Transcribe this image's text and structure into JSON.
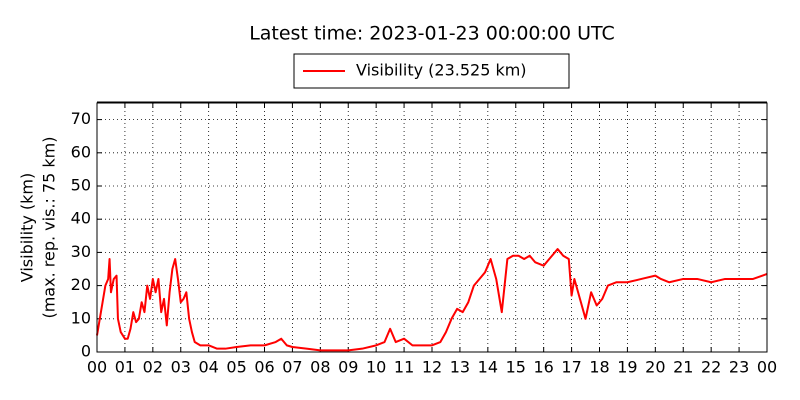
{
  "chart_data": {
    "type": "line",
    "title": "Latest time: 2023-01-23 00:00:00 UTC",
    "ylabel": [
      "Visibility (km)",
      "(max. rep. vis.: 75 km)"
    ],
    "x": [
      0,
      0.1,
      0.2,
      0.3,
      0.4,
      0.45,
      0.5,
      0.6,
      0.7,
      0.75,
      0.85,
      1.0,
      1.1,
      1.2,
      1.3,
      1.4,
      1.5,
      1.6,
      1.7,
      1.8,
      1.9,
      2.0,
      2.1,
      2.2,
      2.3,
      2.4,
      2.5,
      2.6,
      2.7,
      2.8,
      2.9,
      3.0,
      3.1,
      3.2,
      3.3,
      3.4,
      3.5,
      3.7,
      4.0,
      4.3,
      4.6,
      5.0,
      5.5,
      6.0,
      6.4,
      6.6,
      6.8,
      7.0,
      7.5,
      8.0,
      8.5,
      9.0,
      9.5,
      10.0,
      10.3,
      10.5,
      10.7,
      11.0,
      11.3,
      11.7,
      12.0,
      12.3,
      12.5,
      12.7,
      12.9,
      13.1,
      13.3,
      13.5,
      13.7,
      13.9,
      14.1,
      14.3,
      14.5,
      14.6,
      14.7,
      14.9,
      15.1,
      15.3,
      15.5,
      15.7,
      16.0,
      16.2,
      16.5,
      16.7,
      16.9,
      17.0,
      17.1,
      17.3,
      17.5,
      17.7,
      17.9,
      18.1,
      18.3,
      18.6,
      19.0,
      19.5,
      20.0,
      20.2,
      20.5,
      21.0,
      21.5,
      22.0,
      22.5,
      23.0,
      23.5,
      24.0
    ],
    "series": [
      {
        "name": "Visibility (23.525 km)",
        "color": "#ff0000",
        "values": [
          5,
          10,
          15,
          20,
          22,
          28,
          18,
          22,
          23,
          10,
          6,
          4,
          4,
          7,
          12,
          9,
          10,
          15,
          12,
          20,
          16,
          22,
          18,
          22,
          12,
          16,
          8,
          18,
          25,
          28,
          22,
          15,
          16,
          18,
          10,
          6,
          3,
          2,
          2,
          1,
          1,
          1.5,
          2,
          2,
          3,
          4,
          2,
          1.5,
          1,
          0.5,
          0.5,
          0.5,
          1,
          2,
          3,
          7,
          3,
          4,
          2,
          2,
          2,
          3,
          6,
          10,
          13,
          12,
          15,
          20,
          22,
          24,
          28,
          22,
          12,
          20,
          28,
          29,
          29,
          28,
          29,
          27,
          26,
          28,
          31,
          29,
          28,
          17,
          22,
          16,
          10,
          18,
          14,
          16,
          20,
          21,
          21,
          22,
          23,
          22,
          21,
          22,
          22,
          21,
          22,
          22,
          22,
          23.5
        ]
      }
    ],
    "xlim": [
      0,
      24
    ],
    "xticks": [
      {
        "value": 0,
        "label": "00"
      },
      {
        "value": 1,
        "label": "01"
      },
      {
        "value": 2,
        "label": "02"
      },
      {
        "value": 3,
        "label": "03"
      },
      {
        "value": 4,
        "label": "04"
      },
      {
        "value": 5,
        "label": "05"
      },
      {
        "value": 6,
        "label": "06"
      },
      {
        "value": 7,
        "label": "07"
      },
      {
        "value": 8,
        "label": "08"
      },
      {
        "value": 9,
        "label": "09"
      },
      {
        "value": 10,
        "label": "10"
      },
      {
        "value": 11,
        "label": "11"
      },
      {
        "value": 12,
        "label": "12"
      },
      {
        "value": 13,
        "label": "13"
      },
      {
        "value": 14,
        "label": "14"
      },
      {
        "value": 15,
        "label": "15"
      },
      {
        "value": 16,
        "label": "16"
      },
      {
        "value": 17,
        "label": "17"
      },
      {
        "value": 18,
        "label": "18"
      },
      {
        "value": 19,
        "label": "19"
      },
      {
        "value": 20,
        "label": "20"
      },
      {
        "value": 21,
        "label": "21"
      },
      {
        "value": 22,
        "label": "22"
      },
      {
        "value": 23,
        "label": "23"
      },
      {
        "value": 24,
        "label": "00"
      }
    ],
    "ylim": [
      0,
      75
    ],
    "yticks": [
      0,
      10,
      20,
      30,
      40,
      50,
      60,
      70
    ],
    "grid": true
  }
}
